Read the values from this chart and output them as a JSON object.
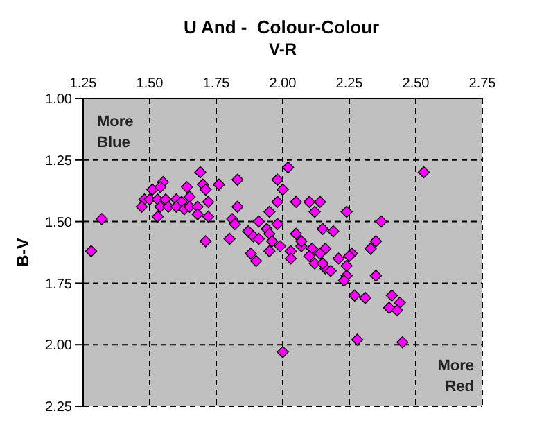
{
  "chart_data": {
    "type": "scatter",
    "title": "U And -  Colour-Colour",
    "xlabel": "V-R",
    "ylabel": "B-V",
    "xlim": [
      1.25,
      2.75
    ],
    "xticks": [
      1.25,
      {
        "value": 1.5,
        "label": "1.50"
      },
      1.75,
      {
        "value": 2,
        "label": "2.00"
      },
      2.25,
      {
        "value": 2.5,
        "label": "2.50"
      },
      2.75
    ],
    "ylim": [
      2.25,
      1.0
    ],
    "yticks": [
      {
        "value": 1,
        "label": "1.00"
      },
      1.25,
      {
        "value": 1.5,
        "label": "1.50"
      },
      1.75,
      {
        "value": 2,
        "label": "2.00"
      },
      2.25
    ],
    "grid": true,
    "marker": "diamond",
    "legend": false,
    "annotations": [
      "More Blue",
      "More Red"
    ],
    "series": [
      {
        "color": "#ff00ff",
        "x": [
          1.69,
          1.55,
          1.51,
          1.54,
          1.64,
          1.7,
          1.71,
          1.76,
          1.83,
          1.98,
          2.0,
          2.02,
          1.48,
          1.5,
          1.53,
          1.56,
          1.6,
          1.62,
          1.65,
          1.72,
          1.83,
          1.98,
          1.47,
          1.54,
          1.57,
          1.6,
          1.63,
          1.65,
          1.68,
          1.68,
          1.53,
          1.72,
          1.32,
          1.95,
          1.81,
          1.82,
          1.91,
          1.87,
          1.89,
          1.91,
          1.94,
          1.95,
          1.96,
          1.71,
          1.8,
          2.05,
          1.28,
          1.88,
          1.9,
          1.95,
          2.03,
          2.07,
          2.03,
          1.99,
          2.53,
          2.05,
          2.1,
          2.14,
          2.12,
          2.24,
          2.37,
          2.15,
          2.19,
          1.98,
          2.35,
          2.33,
          2.07,
          2.11,
          2.16,
          2.14,
          2.26,
          2.21,
          2.24,
          2.12,
          2.16,
          2.1,
          2.18,
          2.25,
          2.24,
          2.23,
          2.33,
          2.35,
          2.27,
          2.31,
          2.41,
          2.44,
          2.4,
          2.43,
          2.28,
          2.45,
          2.0,
          2.15
        ],
        "values": [
          1.3,
          1.34,
          1.37,
          1.36,
          1.36,
          1.35,
          1.37,
          1.35,
          1.33,
          1.33,
          1.37,
          1.28,
          1.41,
          1.41,
          1.41,
          1.41,
          1.41,
          1.42,
          1.4,
          1.42,
          1.44,
          1.42,
          1.44,
          1.44,
          1.44,
          1.44,
          1.45,
          1.44,
          1.44,
          1.47,
          1.48,
          1.48,
          1.49,
          1.46,
          1.49,
          1.51,
          1.5,
          1.54,
          1.56,
          1.57,
          1.53,
          1.55,
          1.58,
          1.58,
          1.57,
          1.55,
          1.62,
          1.63,
          1.66,
          1.62,
          1.62,
          1.6,
          1.65,
          1.6,
          1.3,
          1.42,
          1.42,
          1.42,
          1.46,
          1.46,
          1.5,
          1.53,
          1.54,
          1.51,
          1.58,
          1.61,
          1.58,
          1.61,
          1.61,
          1.63,
          1.63,
          1.65,
          1.68,
          1.67,
          1.69,
          1.64,
          1.7,
          1.64,
          1.72,
          1.74,
          1.61,
          1.72,
          1.8,
          1.81,
          1.8,
          1.83,
          1.85,
          1.86,
          1.98,
          1.99,
          2.03,
          1.67
        ]
      }
    ]
  }
}
